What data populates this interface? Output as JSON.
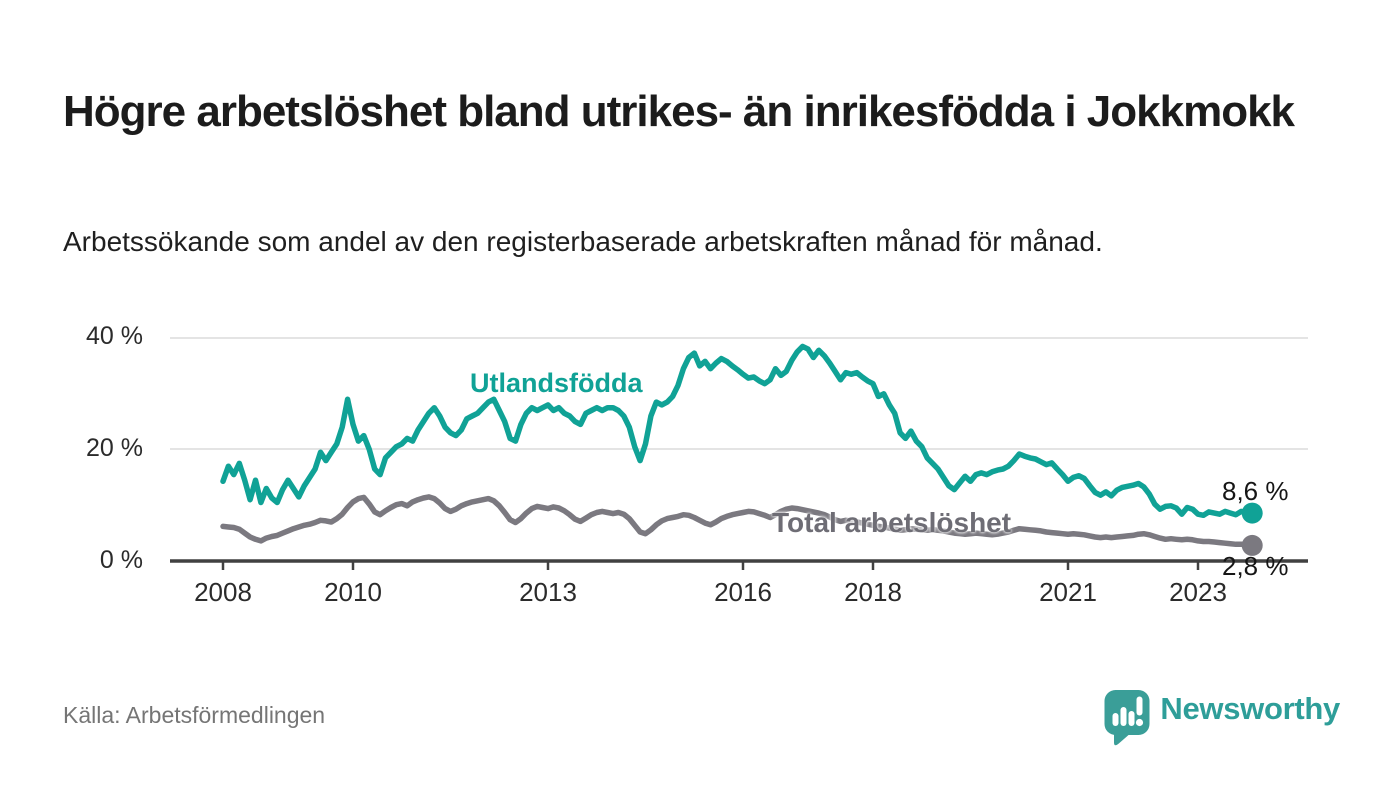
{
  "header": {
    "title": "Högre arbetslöshet bland utrikes- än inrikesfödda i Jokkmokk",
    "subtitle": "Arbetssökande som andel av den registerbaserade arbetskraften månad för månad."
  },
  "footer": {
    "source": "Källa: Arbetsförmedlingen",
    "brand_name": "Newsworthy",
    "brand_color": "#2e9e99",
    "brand_icon": "speech-bubble-bar-chart"
  },
  "chart_data": {
    "type": "line",
    "title": "Högre arbetslöshet bland utrikes- än inrikesfödda i Jokkmokk",
    "subtitle": "Arbetssökande som andel av den registerbaserade arbetskraften månad för månad.",
    "x_start": "2008-01",
    "x_freq": "monthly",
    "x_tick_years": [
      2008,
      2010,
      2013,
      2016,
      2018,
      2021,
      2023
    ],
    "x_tick_labels": [
      "2008",
      "2010",
      "2013",
      "2016",
      "2018",
      "2021",
      "2023"
    ],
    "y_tick_labels": [
      "40 %",
      "20 %",
      "0 %"
    ],
    "ylim": [
      0,
      40
    ],
    "grid": "horizontal",
    "legend_position": "inline-labels",
    "series": [
      {
        "name": "Utlandsfödda",
        "color": "#10a296",
        "end_label": "8,6 %",
        "end_value": 8.6,
        "values": [
          14.3,
          17.0,
          15.5,
          17.5,
          14.5,
          11.0,
          14.5,
          10.5,
          13.0,
          11.3,
          10.5,
          12.8,
          14.5,
          13.0,
          11.5,
          13.5,
          15.0,
          16.5,
          19.5,
          18.0,
          19.5,
          21.0,
          24.0,
          29.0,
          24.5,
          21.5,
          22.5,
          20.0,
          16.5,
          15.5,
          18.5,
          19.5,
          20.5,
          21.0,
          22.0,
          21.5,
          23.5,
          25.0,
          26.5,
          27.5,
          26.0,
          24.0,
          23.0,
          22.5,
          23.5,
          25.5,
          26.0,
          26.5,
          27.5,
          28.5,
          29.0,
          27.0,
          25.0,
          22.0,
          21.5,
          24.5,
          26.5,
          27.5,
          27.0,
          27.5,
          28.0,
          27.0,
          27.5,
          26.5,
          26.0,
          25.0,
          24.5,
          26.5,
          27.0,
          27.5,
          27.0,
          27.5,
          27.5,
          27.0,
          26.0,
          24.0,
          20.5,
          18.0,
          21.0,
          26.0,
          28.5,
          28.0,
          28.5,
          29.5,
          31.5,
          34.5,
          36.5,
          37.3,
          35.0,
          35.8,
          34.5,
          35.5,
          36.3,
          35.8,
          35.0,
          34.3,
          33.5,
          32.8,
          33.0,
          32.3,
          31.8,
          32.5,
          34.5,
          33.3,
          34.0,
          36.0,
          37.5,
          38.5,
          38.0,
          36.5,
          37.8,
          36.8,
          35.5,
          34.0,
          32.5,
          33.8,
          33.5,
          33.8,
          33.0,
          32.3,
          31.8,
          29.5,
          30.0,
          28.0,
          26.5,
          23.0,
          22.0,
          23.3,
          21.5,
          20.5,
          18.5,
          17.5,
          16.5,
          15.0,
          13.5,
          12.8,
          14.0,
          15.2,
          14.3,
          15.5,
          15.8,
          15.5,
          16.0,
          16.3,
          16.5,
          17.0,
          18.0,
          19.2,
          18.8,
          18.5,
          18.3,
          17.8,
          17.3,
          17.6,
          16.5,
          15.5,
          14.3,
          15.0,
          15.3,
          14.8,
          13.5,
          12.3,
          11.8,
          12.4,
          11.7,
          12.7,
          13.2,
          13.4,
          13.6,
          13.9,
          13.3,
          12.0,
          10.2,
          9.3,
          9.8,
          9.9,
          9.5,
          8.4,
          9.6,
          9.3,
          8.4,
          8.2,
          8.8,
          8.6,
          8.4,
          8.9,
          8.6,
          8.3,
          8.9,
          8.7,
          8.6
        ]
      },
      {
        "name": "Total arbetslöshet",
        "color": "#7b7980",
        "end_label": "2,8 %",
        "end_value": 2.8,
        "values": [
          6.2,
          6.1,
          6.0,
          5.7,
          5.0,
          4.3,
          3.9,
          3.6,
          4.1,
          4.4,
          4.6,
          5.0,
          5.4,
          5.8,
          6.1,
          6.4,
          6.6,
          6.9,
          7.3,
          7.2,
          7.0,
          7.6,
          8.4,
          9.6,
          10.6,
          11.2,
          11.4,
          10.2,
          8.8,
          8.3,
          9.0,
          9.6,
          10.1,
          10.3,
          9.9,
          10.6,
          11.0,
          11.3,
          11.5,
          11.2,
          10.4,
          9.4,
          8.9,
          9.3,
          9.9,
          10.3,
          10.6,
          10.8,
          11.0,
          11.2,
          10.8,
          9.9,
          8.7,
          7.4,
          6.9,
          7.6,
          8.6,
          9.4,
          9.8,
          9.6,
          9.4,
          9.7,
          9.5,
          9.0,
          8.3,
          7.5,
          7.1,
          7.7,
          8.3,
          8.7,
          8.9,
          8.7,
          8.5,
          8.7,
          8.4,
          7.6,
          6.4,
          5.2,
          4.9,
          5.6,
          6.5,
          7.2,
          7.6,
          7.8,
          8.0,
          8.3,
          8.2,
          7.8,
          7.3,
          6.8,
          6.5,
          7.0,
          7.6,
          8.0,
          8.3,
          8.5,
          8.7,
          8.9,
          8.8,
          8.5,
          8.2,
          7.8,
          8.3,
          8.9,
          9.3,
          9.5,
          9.4,
          9.2,
          9.0,
          8.8,
          8.6,
          8.3,
          7.9,
          7.4,
          7.1,
          7.3,
          7.2,
          7.0,
          6.8,
          6.6,
          6.4,
          6.2,
          6.1,
          5.9,
          5.7,
          5.5,
          5.6,
          5.8,
          5.7,
          5.6,
          5.5,
          5.6,
          5.5,
          5.4,
          5.2,
          5.0,
          4.9,
          4.8,
          4.9,
          5.0,
          4.9,
          4.8,
          4.7,
          4.8,
          5.0,
          5.2,
          5.5,
          5.8,
          5.7,
          5.6,
          5.5,
          5.4,
          5.2,
          5.1,
          5.0,
          4.9,
          4.8,
          4.9,
          4.8,
          4.7,
          4.5,
          4.3,
          4.2,
          4.3,
          4.2,
          4.3,
          4.4,
          4.5,
          4.6,
          4.8,
          4.9,
          4.7,
          4.4,
          4.1,
          3.9,
          4.0,
          3.9,
          3.8,
          3.9,
          3.8,
          3.6,
          3.5,
          3.5,
          3.4,
          3.3,
          3.2,
          3.1,
          3.0,
          3.0,
          2.9,
          2.8
        ]
      }
    ]
  }
}
